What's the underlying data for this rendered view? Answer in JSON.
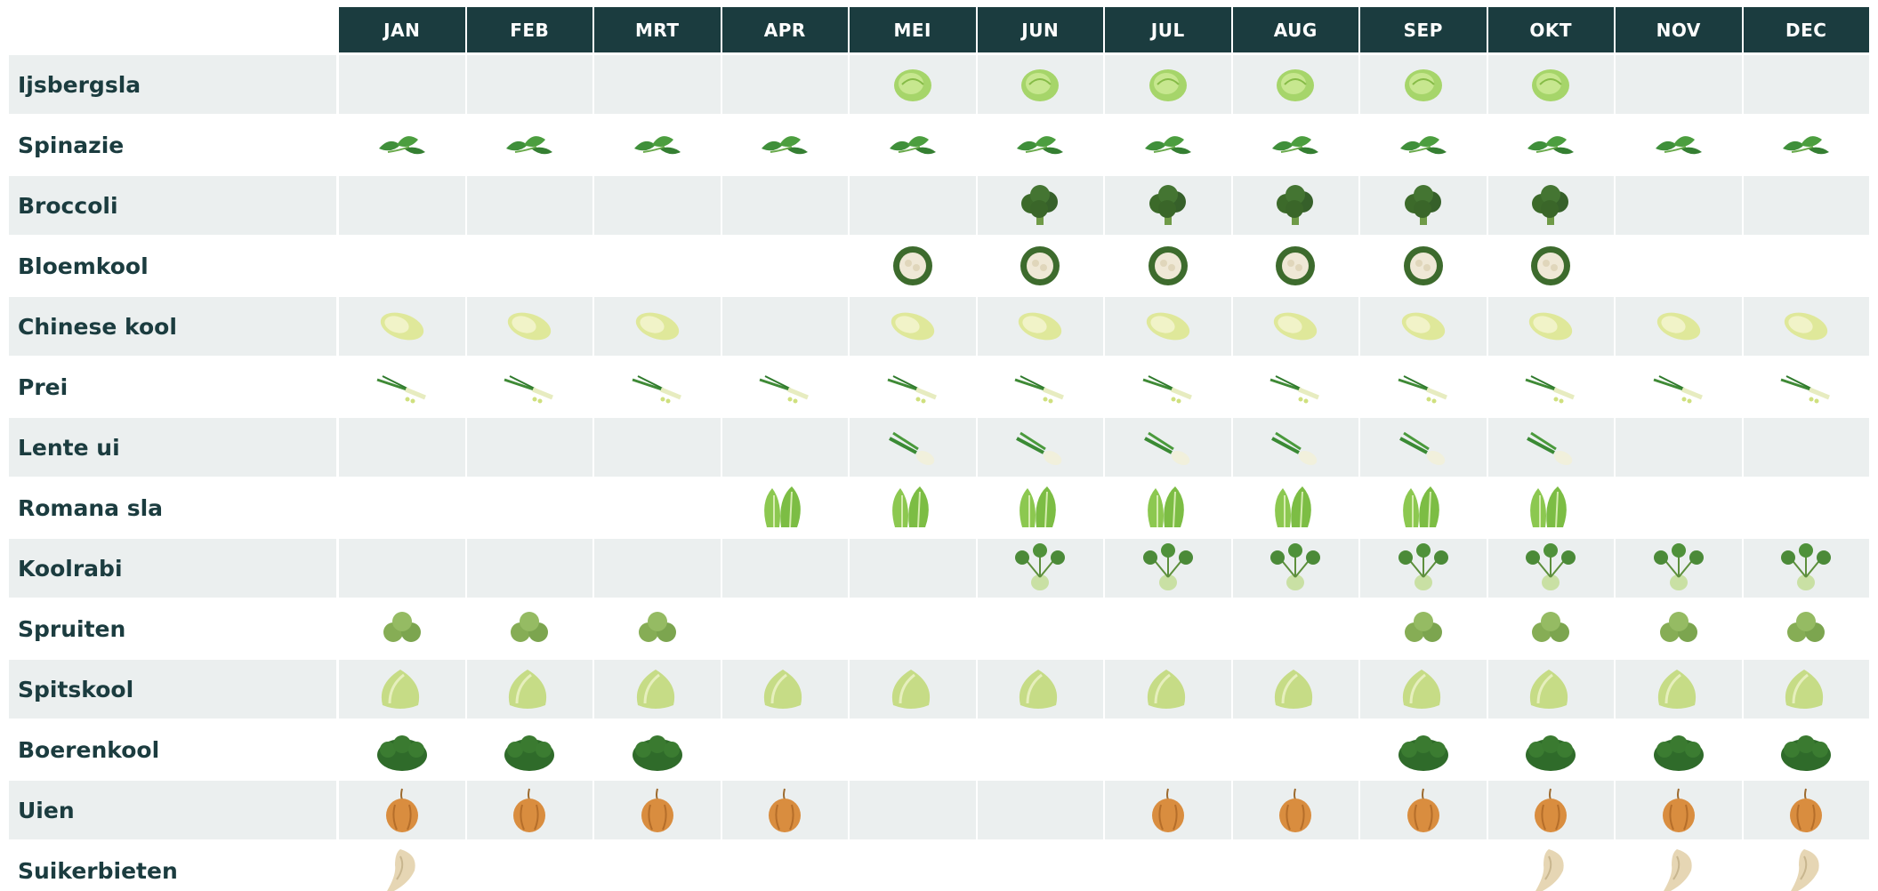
{
  "table": {
    "months": [
      "JAN",
      "FEB",
      "MRT",
      "APR",
      "MEI",
      "JUN",
      "JUL",
      "AUG",
      "SEP",
      "OKT",
      "NOV",
      "DEC"
    ],
    "rows": [
      {
        "name": "Ijsbergsla",
        "months": [
          false,
          false,
          false,
          false,
          true,
          true,
          true,
          true,
          true,
          true,
          false,
          false
        ]
      },
      {
        "name": "Spinazie",
        "months": [
          true,
          true,
          true,
          true,
          true,
          true,
          true,
          true,
          true,
          true,
          true,
          true
        ]
      },
      {
        "name": "Broccoli",
        "months": [
          false,
          false,
          false,
          false,
          false,
          true,
          true,
          true,
          true,
          true,
          false,
          false
        ]
      },
      {
        "name": "Bloemkool",
        "months": [
          false,
          false,
          false,
          false,
          true,
          true,
          true,
          true,
          true,
          true,
          false,
          false
        ]
      },
      {
        "name": "Chinese kool",
        "months": [
          true,
          true,
          true,
          false,
          true,
          true,
          true,
          true,
          true,
          true,
          true,
          true
        ]
      },
      {
        "name": "Prei",
        "months": [
          true,
          true,
          true,
          true,
          true,
          true,
          true,
          true,
          true,
          true,
          true,
          true
        ]
      },
      {
        "name": "Lente ui",
        "months": [
          false,
          false,
          false,
          false,
          true,
          true,
          true,
          true,
          true,
          true,
          false,
          false
        ]
      },
      {
        "name": "Romana sla",
        "months": [
          false,
          false,
          false,
          true,
          true,
          true,
          true,
          true,
          true,
          true,
          false,
          false
        ]
      },
      {
        "name": "Koolrabi",
        "months": [
          false,
          false,
          false,
          false,
          false,
          true,
          true,
          true,
          true,
          true,
          true,
          true
        ]
      },
      {
        "name": "Spruiten",
        "months": [
          true,
          true,
          true,
          false,
          false,
          false,
          false,
          false,
          true,
          true,
          true,
          true
        ]
      },
      {
        "name": "Spitskool",
        "months": [
          true,
          true,
          true,
          true,
          true,
          true,
          true,
          true,
          true,
          true,
          true,
          true
        ]
      },
      {
        "name": "Boerenkool",
        "months": [
          true,
          true,
          true,
          false,
          false,
          false,
          false,
          false,
          true,
          true,
          true,
          true
        ]
      },
      {
        "name": "Uien",
        "months": [
          true,
          true,
          true,
          true,
          false,
          false,
          true,
          true,
          true,
          true,
          true,
          true
        ]
      },
      {
        "name": "Suikerbieten",
        "months": [
          true,
          false,
          false,
          false,
          false,
          false,
          false,
          false,
          false,
          true,
          true,
          true
        ]
      }
    ]
  }
}
